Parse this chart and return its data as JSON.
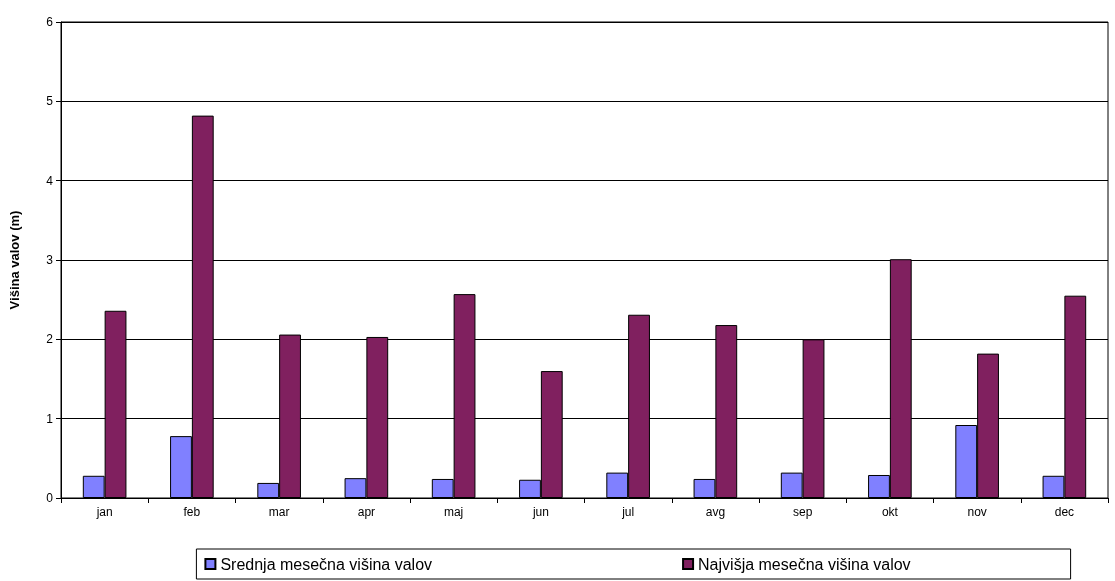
{
  "chart_data": {
    "type": "bar",
    "ylabel": "Višina valov (m)",
    "categories": [
      "jan",
      "feb",
      "mar",
      "apr",
      "maj",
      "jun",
      "jul",
      "avg",
      "sep",
      "okt",
      "nov",
      "dec"
    ],
    "series": [
      {
        "name": "Srednja mesečna višina valov",
        "color": "#8080ff",
        "values": [
          0.28,
          0.78,
          0.19,
          0.25,
          0.24,
          0.23,
          0.32,
          0.24,
          0.32,
          0.29,
          0.92,
          0.28
        ]
      },
      {
        "name": "Najvišja mesečna višina valov",
        "color": "#80205f",
        "values": [
          2.36,
          4.82,
          2.06,
          2.03,
          2.57,
          1.6,
          2.31,
          2.18,
          2.0,
          3.01,
          1.82,
          2.55
        ]
      }
    ],
    "ylim": [
      0,
      6
    ],
    "yticks": [
      0,
      1,
      2,
      3,
      4,
      5,
      6
    ],
    "grid": "y",
    "legend": "bottom"
  }
}
